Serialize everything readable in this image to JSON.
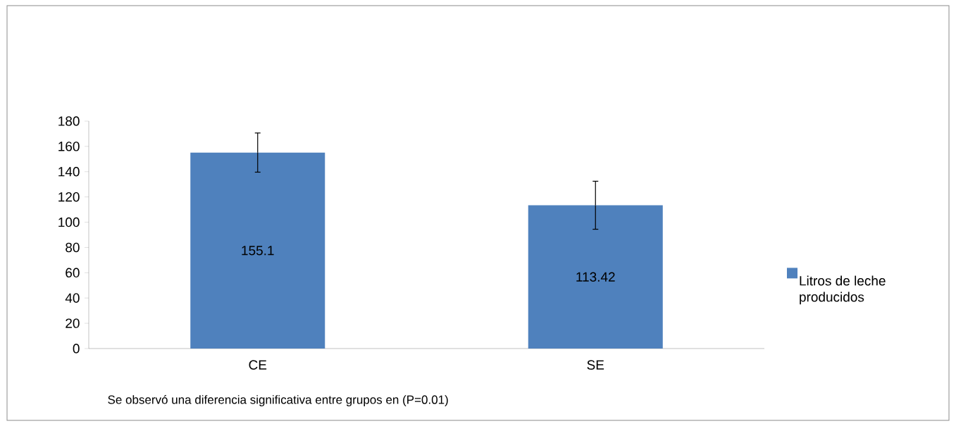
{
  "chart_data": {
    "type": "bar",
    "categories": [
      "CE",
      "SE"
    ],
    "series": [
      {
        "name": "Litros de leche producidos",
        "color": "#4f81bd",
        "values": [
          155.1,
          113.42
        ],
        "errors": [
          15.5,
          19
        ]
      }
    ],
    "ylim": [
      0,
      180
    ],
    "yticks": [
      0,
      20,
      40,
      60,
      80,
      100,
      120,
      140,
      160,
      180
    ],
    "data_labels": true,
    "legend": "right",
    "annotations": [
      "Se observó una diferencia significativa entre grupos en (P=0.01)"
    ]
  }
}
